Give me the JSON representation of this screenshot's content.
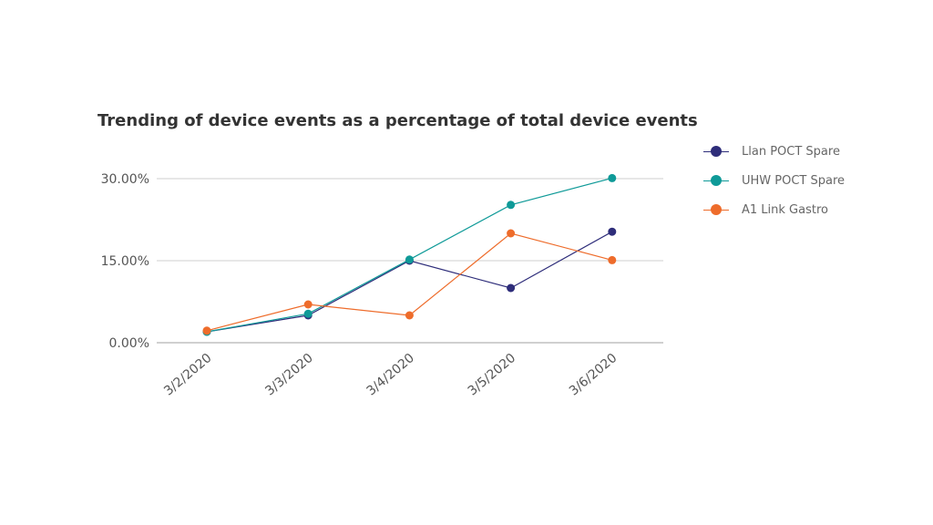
{
  "chart_data": {
    "type": "line",
    "title": "Trending of device events as a percentage of total device events",
    "xlabel": "",
    "ylabel": "",
    "categories": [
      "3/2/2020",
      "3/3/2020",
      "3/4/2020",
      "3/5/2020",
      "3/6/2020"
    ],
    "ylim": [
      0,
      30
    ],
    "yticks": [
      0,
      15,
      30
    ],
    "ytick_labels": [
      "0.00%",
      "15.00%",
      "30.00%"
    ],
    "grid": true,
    "legend_position": "right",
    "series": [
      {
        "name": "Llan POCT Spare",
        "color": "#2e2d7a",
        "values": [
          2,
          5,
          15,
          10,
          20.3
        ]
      },
      {
        "name": "UHW POCT Spare",
        "color": "#0f9a98",
        "values": [
          2,
          5.3,
          15.2,
          25.2,
          30.1
        ]
      },
      {
        "name": "A1 Link Gastro",
        "color": "#ee6c2b",
        "values": [
          2.2,
          7,
          5,
          20,
          15.1
        ]
      }
    ]
  }
}
